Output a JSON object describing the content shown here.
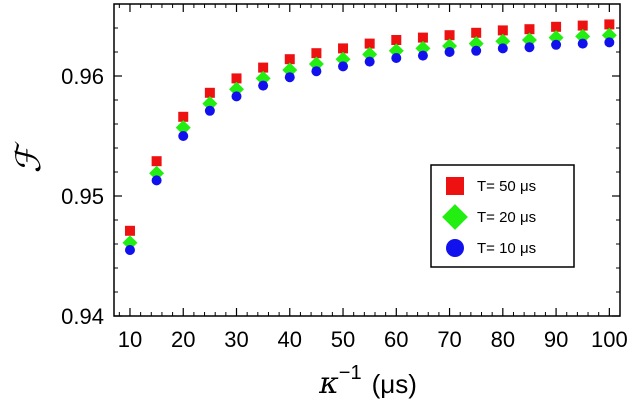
{
  "chart_data": {
    "type": "scatter",
    "title": "",
    "xlabel_symbol": "κ",
    "xlabel_exponent": "−1",
    "xlabel_unit": "(μs)",
    "ylabel": "ℱ",
    "xlim": [
      7,
      102
    ],
    "ylim": [
      0.94,
      0.966
    ],
    "x_ticks": [
      10,
      20,
      30,
      40,
      50,
      60,
      70,
      80,
      90,
      100
    ],
    "y_ticks": [
      0.94,
      0.95,
      0.96
    ],
    "y_tick_labels": [
      "0.94",
      "0.95",
      "0.96"
    ],
    "grid": false,
    "legend_position": "right",
    "x": [
      10,
      15,
      20,
      25,
      30,
      35,
      40,
      45,
      50,
      55,
      60,
      65,
      70,
      75,
      80,
      85,
      90,
      95,
      100
    ],
    "series": [
      {
        "name": "T= 50 μs",
        "color": "#ee1111",
        "marker": "square",
        "values": [
          0.9471,
          0.9529,
          0.9566,
          0.9586,
          0.9598,
          0.9607,
          0.9614,
          0.9619,
          0.9623,
          0.9627,
          0.963,
          0.9632,
          0.9634,
          0.9636,
          0.9638,
          0.9639,
          0.9641,
          0.9642,
          0.9643
        ]
      },
      {
        "name": "T= 20 μs",
        "color": "#22ee11",
        "marker": "diamond",
        "values": [
          0.9461,
          0.9519,
          0.9557,
          0.9577,
          0.9589,
          0.9598,
          0.9605,
          0.961,
          0.9614,
          0.9618,
          0.9621,
          0.9623,
          0.9625,
          0.9627,
          0.9629,
          0.963,
          0.9632,
          0.9633,
          0.9634
        ]
      },
      {
        "name": "T= 10 μs",
        "color": "#1111ee",
        "marker": "circle",
        "values": [
          0.9455,
          0.9513,
          0.955,
          0.9571,
          0.9583,
          0.9592,
          0.9599,
          0.9604,
          0.9608,
          0.9612,
          0.9615,
          0.9617,
          0.962,
          0.9621,
          0.9623,
          0.9624,
          0.9626,
          0.9627,
          0.9628
        ]
      }
    ]
  }
}
